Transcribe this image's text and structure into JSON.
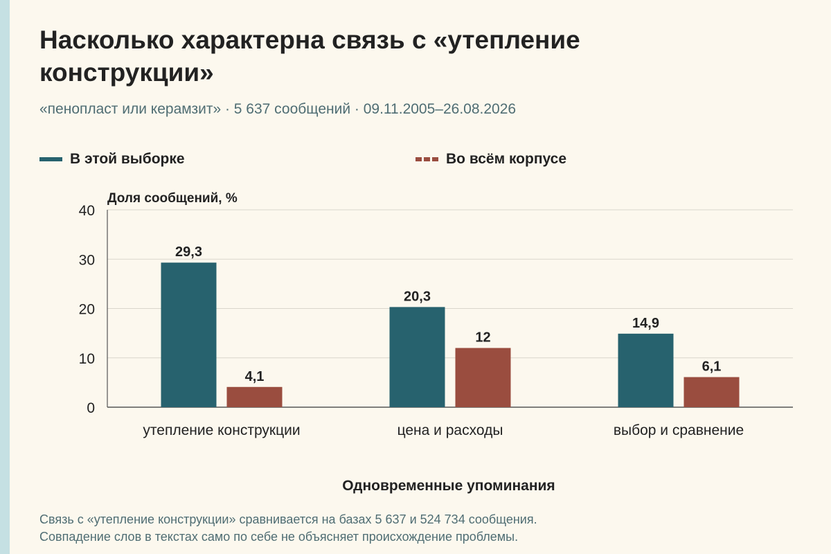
{
  "header": {
    "title": "Насколько характерна связь с «утепление конструкции»",
    "subtitle": "«пенопласт или керамзит» · 5 637 сообщений · 09.11.2005–26.08.2026"
  },
  "legend": [
    {
      "label": "В этой выборке",
      "color": "#27626e",
      "style": "solid"
    },
    {
      "label": "Во всём корпусе",
      "color": "#9a4d3f",
      "style": "dashed"
    }
  ],
  "chart_data": {
    "type": "bar",
    "ylabel": "Доля сообщений, %",
    "xlabel": "Одновременные упоминания",
    "ylim": [
      0,
      40
    ],
    "yticks": [
      0,
      10,
      20,
      30,
      40
    ],
    "grid": true,
    "legend_position": "top",
    "categories": [
      "утепление конструкции",
      "цена и расходы",
      "выбор и сравнение"
    ],
    "series": [
      {
        "name": "В этой выборке",
        "values": [
          29.3,
          20.3,
          14.9
        ],
        "labels": [
          "29,3",
          "20,3",
          "14,9"
        ],
        "color": "#27626e"
      },
      {
        "name": "Во всём корпусе",
        "values": [
          4.1,
          12,
          6.1
        ],
        "labels": [
          "4,1",
          "12",
          "6,1"
        ],
        "color": "#9a4d3f"
      }
    ]
  },
  "footnote": {
    "line1": "Связь с «утепление конструкции» сравнивается на базах 5 637 и 524 734 сообщения.",
    "line2": "Совпадение слов в текстах само по себе не объясняет происхождение проблемы."
  }
}
